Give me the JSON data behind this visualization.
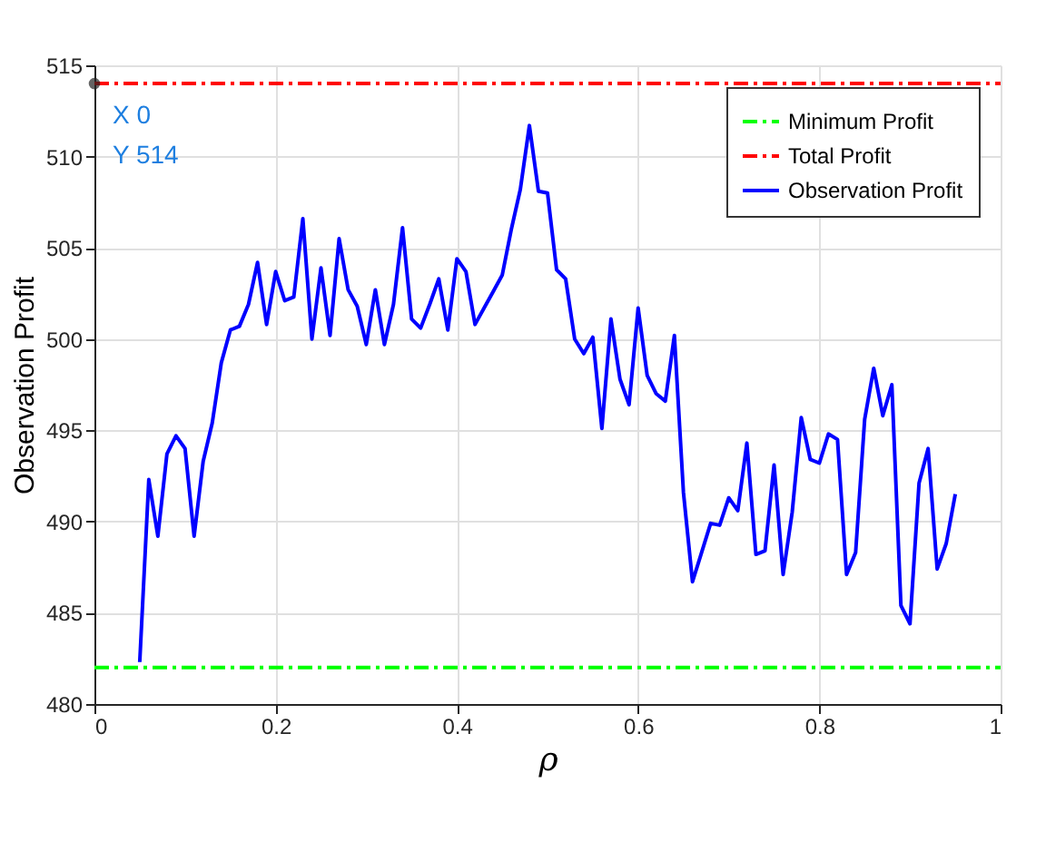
{
  "chart_data": {
    "type": "line",
    "xlabel": "ρ",
    "ylabel": "Observation Profit",
    "xlim": [
      0,
      1
    ],
    "xticks": [
      0,
      0.2,
      0.4,
      0.6,
      0.8,
      1
    ],
    "ylim": [
      480,
      515
    ],
    "yticks": [
      480,
      485,
      490,
      495,
      500,
      505,
      510,
      515
    ],
    "grid": true,
    "legend": "top right",
    "annotations": [
      {
        "text": "X 0",
        "x": 0,
        "y": 514
      },
      {
        "text": "Y 514",
        "x": 0,
        "y": 514
      }
    ],
    "series": [
      {
        "name": "Minimum Profit",
        "color": "#00ff00",
        "line_style": "dashed",
        "x": [
          0,
          1
        ],
        "values": [
          482,
          482
        ]
      },
      {
        "name": "Total Profit",
        "color": "#ff0000",
        "line_style": "dashed",
        "x": [
          0,
          1
        ],
        "values": [
          514,
          514
        ]
      },
      {
        "name": "Observation Profit",
        "color": "#0000ff",
        "line_style": "solid",
        "x": [
          0.05,
          0.06,
          0.07,
          0.08,
          0.09,
          0.1,
          0.11,
          0.12,
          0.13,
          0.14,
          0.15,
          0.16,
          0.17,
          0.18,
          0.19,
          0.2,
          0.21,
          0.22,
          0.23,
          0.24,
          0.25,
          0.26,
          0.27,
          0.28,
          0.29,
          0.3,
          0.31,
          0.32,
          0.33,
          0.34,
          0.35,
          0.36,
          0.37,
          0.38,
          0.39,
          0.4,
          0.41,
          0.42,
          0.43,
          0.44,
          0.45,
          0.46,
          0.47,
          0.48,
          0.49,
          0.5,
          0.51,
          0.52,
          0.53,
          0.54,
          0.55,
          0.56,
          0.57,
          0.58,
          0.59,
          0.6,
          0.61,
          0.62,
          0.63,
          0.64,
          0.65,
          0.66,
          0.67,
          0.68,
          0.69,
          0.7,
          0.71,
          0.72,
          0.73,
          0.74,
          0.75,
          0.76,
          0.77,
          0.78,
          0.79,
          0.8,
          0.81,
          0.82,
          0.83,
          0.84,
          0.85,
          0.86,
          0.87,
          0.88,
          0.89,
          0.9,
          0.91,
          0.92,
          0.93,
          0.94,
          0.95
        ],
        "values": [
          482.3,
          492.3,
          489.2,
          493.7,
          494.7,
          494.0,
          489.2,
          493.3,
          495.4,
          498.7,
          500.5,
          500.7,
          501.9,
          504.2,
          500.8,
          503.7,
          502.1,
          502.3,
          506.6,
          500.0,
          503.9,
          500.2,
          505.5,
          502.7,
          501.8,
          499.7,
          502.7,
          499.7,
          501.9,
          506.1,
          501.1,
          500.6,
          501.9,
          503.3,
          500.5,
          504.4,
          503.7,
          500.8,
          501.7,
          502.6,
          503.5,
          506.0,
          508.2,
          511.7,
          508.1,
          508.0,
          503.8,
          503.3,
          500.0,
          499.2,
          500.1,
          495.1,
          501.1,
          497.8,
          496.4,
          501.7,
          498.0,
          497.0,
          496.6,
          500.2,
          491.6,
          486.7,
          488.3,
          489.9,
          489.8,
          491.3,
          490.6,
          494.3,
          488.2,
          488.4,
          493.1,
          487.1,
          490.5,
          495.7,
          493.4,
          493.2,
          494.8,
          494.5,
          487.1,
          488.3,
          495.6,
          498.4,
          495.8,
          497.5,
          485.4,
          484.4,
          492.1,
          494.0,
          487.4,
          488.8,
          491.5
        ]
      }
    ]
  }
}
